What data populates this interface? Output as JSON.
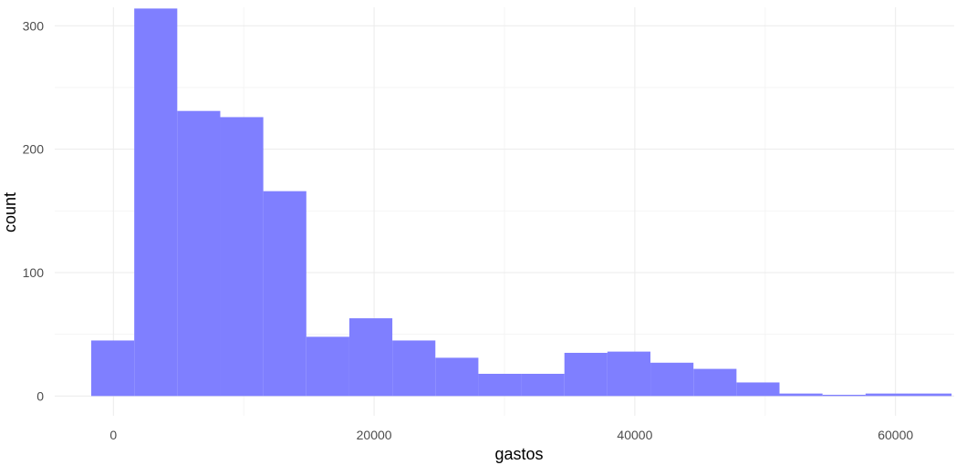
{
  "chart_data": {
    "type": "bar",
    "subtype": "histogram",
    "xlabel": "gastos",
    "ylabel": "count",
    "xlim": [
      -4500,
      64500
    ],
    "ylim": [
      -16,
      315
    ],
    "x_ticks": [
      0,
      20000,
      40000,
      60000
    ],
    "x_tick_labels": [
      "0",
      "20000",
      "40000",
      "60000"
    ],
    "y_ticks": [
      0,
      100,
      200,
      300
    ],
    "y_tick_labels": [
      "0",
      "100",
      "200",
      "300"
    ],
    "grid": true,
    "legend": "none",
    "bar_color": "#7f7fff",
    "bins": [
      {
        "x0": -1700,
        "x1": 1600,
        "count": 45
      },
      {
        "x0": 1600,
        "x1": 4900,
        "count": 314
      },
      {
        "x0": 4900,
        "x1": 8200,
        "count": 231
      },
      {
        "x0": 8200,
        "x1": 11500,
        "count": 226
      },
      {
        "x0": 11500,
        "x1": 14800,
        "count": 166
      },
      {
        "x0": 14800,
        "x1": 18100,
        "count": 48
      },
      {
        "x0": 18100,
        "x1": 21400,
        "count": 63
      },
      {
        "x0": 21400,
        "x1": 24700,
        "count": 45
      },
      {
        "x0": 24700,
        "x1": 28000,
        "count": 31
      },
      {
        "x0": 28000,
        "x1": 31300,
        "count": 18
      },
      {
        "x0": 31300,
        "x1": 34600,
        "count": 18
      },
      {
        "x0": 34600,
        "x1": 37900,
        "count": 35
      },
      {
        "x0": 37900,
        "x1": 41200,
        "count": 36
      },
      {
        "x0": 41200,
        "x1": 44500,
        "count": 27
      },
      {
        "x0": 44500,
        "x1": 47800,
        "count": 22
      },
      {
        "x0": 47800,
        "x1": 51100,
        "count": 11
      },
      {
        "x0": 51100,
        "x1": 54400,
        "count": 2
      },
      {
        "x0": 54400,
        "x1": 57700,
        "count": 1
      },
      {
        "x0": 57700,
        "x1": 61000,
        "count": 2
      },
      {
        "x0": 61000,
        "x1": 64300,
        "count": 2
      }
    ]
  }
}
